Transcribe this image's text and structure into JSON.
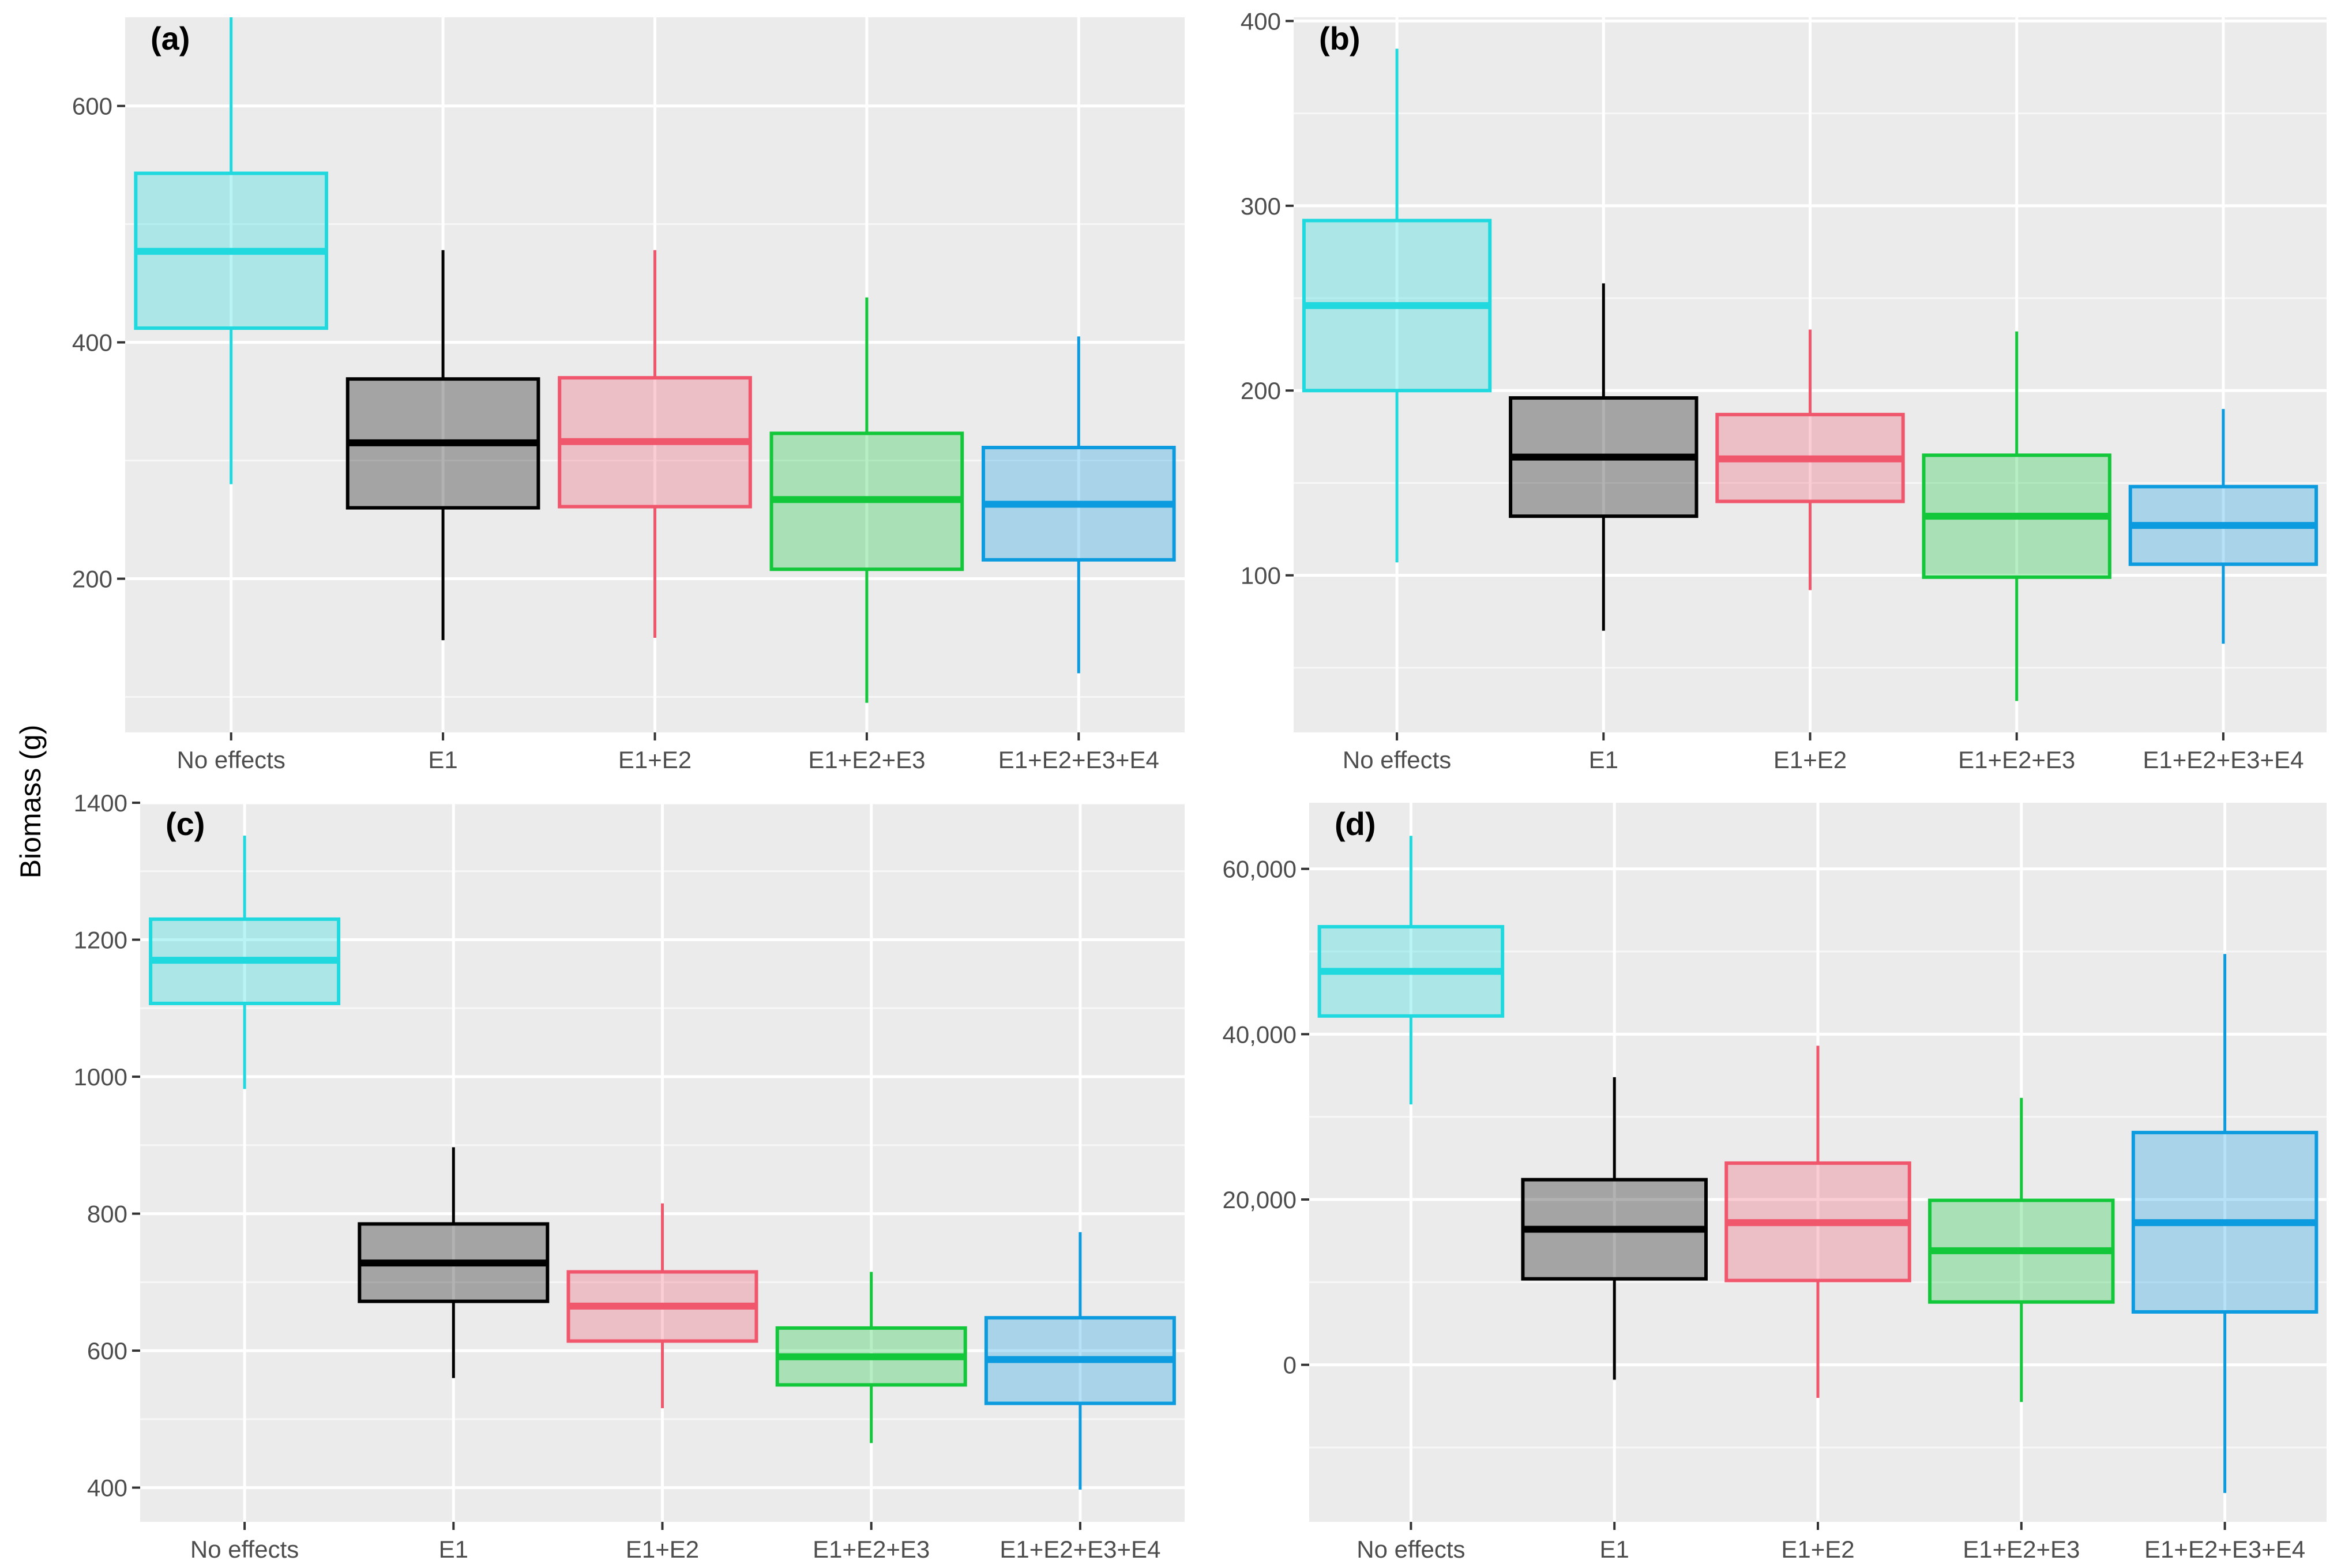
{
  "ylabel": "Biomass (g)",
  "groups": [
    "No effects",
    "E1",
    "E1+E2",
    "E1+E2+E3",
    "E1+E2+E3+E4"
  ],
  "colors": [
    "#1fd9df",
    "#000000",
    "#f0566c",
    "#13c73a",
    "#0d9be0"
  ],
  "fill_opacity": 0.3,
  "chart_data": [
    {
      "type": "boxplot",
      "panel": "(a)",
      "categories": [
        "No effects",
        "E1",
        "E1+E2",
        "E1+E2+E3",
        "E1+E2+E3+E4"
      ],
      "ylim": [
        70,
        675
      ],
      "yticks": [
        200,
        400,
        600
      ],
      "ytick_labels": [
        "200",
        "400",
        "600"
      ],
      "boxes": [
        {
          "min": 280,
          "q1": 412,
          "median": 477,
          "q3": 543,
          "max": 675
        },
        {
          "min": 148,
          "q1": 260,
          "median": 315,
          "q3": 369,
          "max": 478
        },
        {
          "min": 150,
          "q1": 261,
          "median": 316,
          "q3": 370,
          "max": 478
        },
        {
          "min": 95,
          "q1": 208,
          "median": 267,
          "q3": 323,
          "max": 438
        },
        {
          "min": 120,
          "q1": 216,
          "median": 263,
          "q3": 311,
          "max": 405
        }
      ]
    },
    {
      "type": "boxplot",
      "panel": "(b)",
      "categories": [
        "No effects",
        "E1",
        "E1+E2",
        "E1+E2+E3",
        "E1+E2+E3+E4"
      ],
      "ylim": [
        15,
        402
      ],
      "yticks": [
        100,
        200,
        300,
        400
      ],
      "ytick_labels": [
        "100",
        "200",
        "300",
        "400"
      ],
      "boxes": [
        {
          "min": 107,
          "q1": 200,
          "median": 246,
          "q3": 292,
          "max": 385
        },
        {
          "min": 70,
          "q1": 132,
          "median": 164,
          "q3": 196,
          "max": 258
        },
        {
          "min": 92,
          "q1": 140,
          "median": 163,
          "q3": 187,
          "max": 233
        },
        {
          "min": 32,
          "q1": 99,
          "median": 132,
          "q3": 165,
          "max": 232
        },
        {
          "min": 63,
          "q1": 106,
          "median": 127,
          "q3": 148,
          "max": 190
        }
      ]
    },
    {
      "type": "boxplot",
      "panel": "(c)",
      "categories": [
        "No effects",
        "E1",
        "E1+E2",
        "E1+E2+E3",
        "E1+E2+E3+E4"
      ],
      "ylim": [
        350,
        1400
      ],
      "yticks": [
        400,
        600,
        800,
        1000,
        1200,
        1400
      ],
      "ytick_labels": [
        "400",
        "600",
        "800",
        "1000",
        "1200",
        "1400"
      ],
      "boxes": [
        {
          "min": 982,
          "q1": 1107,
          "median": 1170,
          "q3": 1230,
          "max": 1352
        },
        {
          "min": 560,
          "q1": 672,
          "median": 728,
          "q3": 785,
          "max": 897
        },
        {
          "min": 516,
          "q1": 614,
          "median": 665,
          "q3": 715,
          "max": 815
        },
        {
          "min": 465,
          "q1": 550,
          "median": 591,
          "q3": 633,
          "max": 715
        },
        {
          "min": 397,
          "q1": 523,
          "median": 587,
          "q3": 648,
          "max": 773
        }
      ]
    },
    {
      "type": "boxplot",
      "panel": "(d)",
      "categories": [
        "No effects",
        "E1",
        "E1+E2",
        "E1+E2+E3",
        "E1+E2+E3+E4"
      ],
      "ylim": [
        -19000,
        68000
      ],
      "yticks": [
        0,
        20000,
        40000,
        60000
      ],
      "ytick_labels": [
        "0",
        "20,000",
        "40,000",
        "60,000"
      ],
      "boxes": [
        {
          "min": 31500,
          "q1": 42200,
          "median": 47600,
          "q3": 53000,
          "max": 64000
        },
        {
          "min": -1800,
          "q1": 10400,
          "median": 16400,
          "q3": 22400,
          "max": 34800
        },
        {
          "min": -4000,
          "q1": 10200,
          "median": 17200,
          "q3": 24400,
          "max": 38600
        },
        {
          "min": -4500,
          "q1": 7600,
          "median": 13800,
          "q3": 19900,
          "max": 32300
        },
        {
          "min": -15500,
          "q1": 6400,
          "median": 17200,
          "q3": 28100,
          "max": 49700
        }
      ]
    }
  ]
}
